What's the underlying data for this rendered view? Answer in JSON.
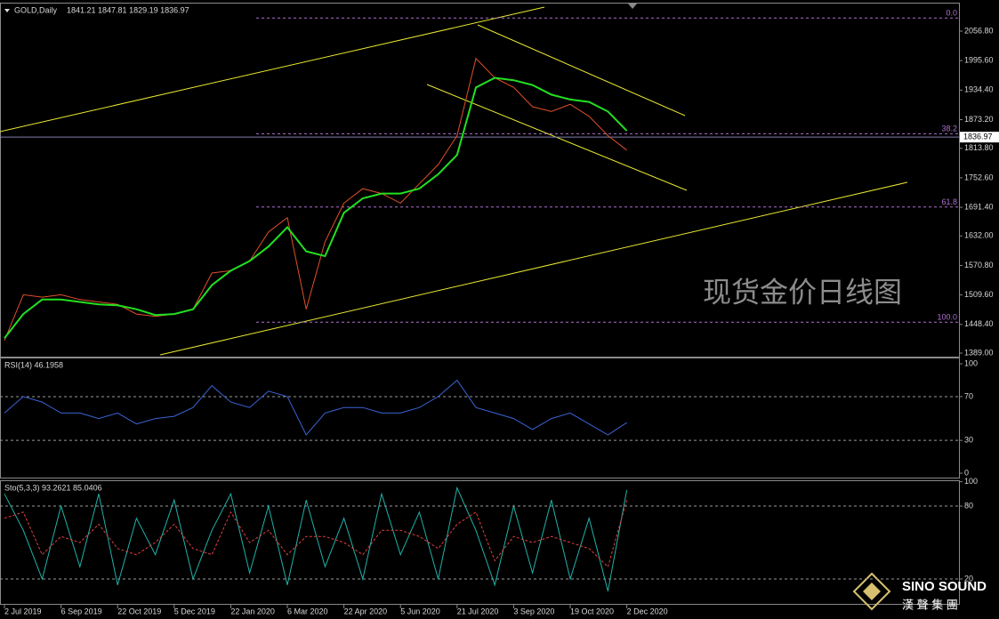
{
  "chart_data": [
    {
      "type": "line",
      "title": "GOLD,Daily",
      "ohlc_text": "1841.21 1847.81 1829.19 1836.97",
      "categories": [
        "2 Jul 2019",
        null,
        null,
        "6 Sep 2019",
        null,
        null,
        "22 Oct 2019",
        null,
        null,
        "5 Dec 2019",
        null,
        null,
        "22 Jan 2020",
        null,
        null,
        "6 Mar 2020",
        null,
        null,
        "22 Apr 2020",
        null,
        null,
        "5 Jun 2020",
        null,
        null,
        "21 Jul 2020",
        null,
        null,
        "3 Sep 2020",
        null,
        null,
        "19 Oct 2020",
        null,
        null,
        "2 Dec 2020"
      ],
      "series": [
        {
          "color": "#e0502a",
          "values": [
            1415,
            1510,
            1505,
            1510,
            1500,
            1495,
            1490,
            1470,
            1465,
            1470,
            1480,
            1555,
            1560,
            1580,
            1640,
            1670,
            1480,
            1620,
            1700,
            1730,
            1720,
            1700,
            1740,
            1780,
            1840,
            2000,
            1960,
            1940,
            1900,
            1890,
            1905,
            1880,
            1840,
            1810
          ]
        },
        {
          "color": "#22e022",
          "values": [
            1420,
            1470,
            1500,
            1500,
            1495,
            1490,
            1488,
            1480,
            1468,
            1470,
            1480,
            1530,
            1560,
            1580,
            1610,
            1650,
            1600,
            1590,
            1680,
            1710,
            1720,
            1720,
            1730,
            1760,
            1800,
            1940,
            1960,
            1955,
            1945,
            1925,
            1915,
            1910,
            1890,
            1850
          ]
        }
      ],
      "ylim": [
        1381.6,
        2114.0
      ],
      "yticks": [
        {
          "value": 2056.8,
          "label": "2056.80"
        },
        {
          "value": 1995.6,
          "label": "1995.60"
        },
        {
          "value": 1934.4,
          "label": "1934.40"
        },
        {
          "value": 1873.2,
          "label": "1873.20"
        },
        {
          "value": 1813.8,
          "label": "1813.80"
        },
        {
          "value": 1752.6,
          "label": "1752.60"
        },
        {
          "value": 1691.4,
          "label": "1691.40"
        },
        {
          "value": 1632,
          "label": "1632.00"
        },
        {
          "value": 1570.8,
          "label": "1570.80"
        },
        {
          "value": 1509.6,
          "label": "1509.60"
        },
        {
          "value": 1448.4,
          "label": "1448.40"
        },
        {
          "value": 1389,
          "label": "1389.00"
        }
      ],
      "fib_levels": [
        {
          "value": 2084,
          "label": "0.0"
        },
        {
          "value": 1844,
          "label": "38.2"
        },
        {
          "value": 1692,
          "label": "61.8"
        },
        {
          "value": 1453,
          "label": "100.0"
        }
      ],
      "current_price": 1836.97
    },
    {
      "type": "line",
      "title": "RSI(14) 46.1958",
      "series": [
        {
          "color": "#3a64d8",
          "values": [
            55,
            70,
            65,
            55,
            55,
            50,
            55,
            45,
            50,
            52,
            60,
            80,
            65,
            60,
            75,
            70,
            35,
            55,
            60,
            60,
            55,
            55,
            60,
            70,
            85,
            60,
            55,
            50,
            40,
            50,
            55,
            45,
            35,
            46.1958
          ]
        }
      ],
      "ylim": [
        -4,
        104.9
      ],
      "yticks": [
        100,
        70,
        30,
        0
      ],
      "levels": [
        70,
        30
      ]
    },
    {
      "type": "line",
      "title": "Sto(5,3,3) 93.2621 85.0406",
      "series": [
        {
          "color": "#20b2aa",
          "values": [
            90,
            60,
            20,
            80,
            30,
            90,
            15,
            70,
            40,
            85,
            20,
            60,
            90,
            25,
            80,
            15,
            85,
            30,
            70,
            20,
            90,
            40,
            75,
            20,
            95,
            60,
            15,
            80,
            25,
            85,
            20,
            70,
            10,
            93.2621
          ]
        },
        {
          "color": "#e04040",
          "dashed": true,
          "values": [
            70,
            75,
            40,
            55,
            50,
            65,
            45,
            40,
            50,
            65,
            45,
            40,
            75,
            50,
            60,
            40,
            55,
            55,
            50,
            40,
            60,
            60,
            55,
            45,
            65,
            75,
            35,
            55,
            50,
            55,
            50,
            45,
            30,
            85.0406
          ]
        }
      ],
      "ylim": [
        -0.5,
        100.5
      ],
      "yticks": [
        100,
        80,
        20
      ],
      "levels": [
        80,
        20
      ]
    }
  ],
  "watermark": "现货金价日线图",
  "logo": {
    "name": "SINO SOUND",
    "sub": "漢 聲 集 團"
  }
}
